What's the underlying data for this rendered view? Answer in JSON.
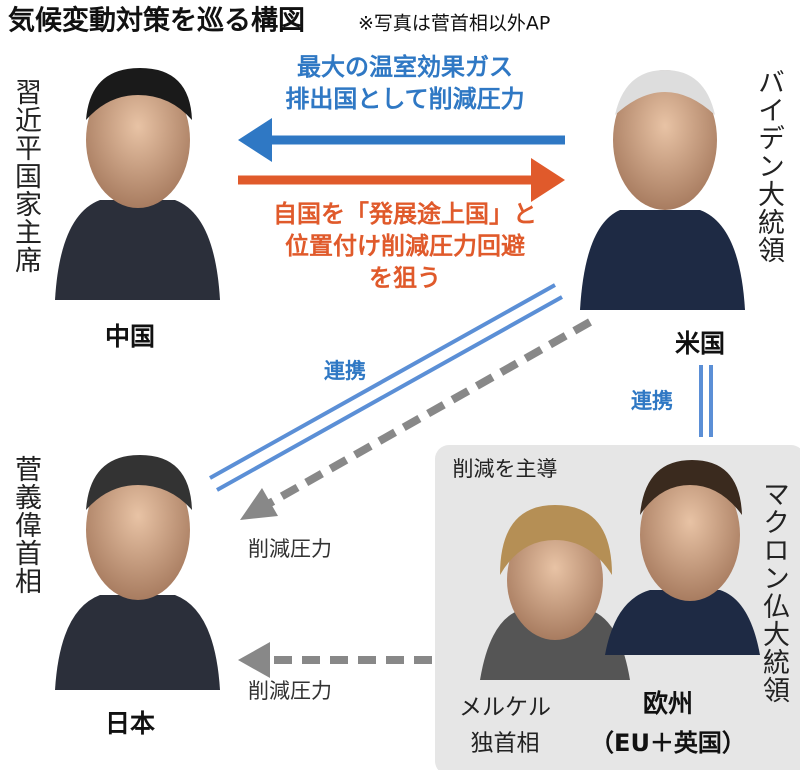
{
  "header": {
    "title": "気候変動対策を巡る構図",
    "note": "※写真は菅首相以外AP"
  },
  "china": {
    "name": "習近平国家主席",
    "label": "中国"
  },
  "us": {
    "name": "バイデン大統領",
    "label": "米国"
  },
  "japan": {
    "name": "菅義偉首相",
    "label": "日本"
  },
  "europe": {
    "box_label": "削減を主導",
    "macron": "マクロン仏大統領",
    "merkel": [
      "メルケル",
      "独首相"
    ],
    "label": "欧州",
    "sublabel": "（EU＋英国）"
  },
  "arrows": {
    "us_to_china": [
      "最大の温室効果ガス",
      "排出国として削減圧力"
    ],
    "china_to_us": [
      "自国を「発展途上国」と",
      "位置付け削減圧力回避",
      "を狙う"
    ],
    "us_japan_link": "連携",
    "us_japan_pressure": "削減圧力",
    "us_europe_link": "連携",
    "europe_japan_pressure": "削減圧力"
  }
}
